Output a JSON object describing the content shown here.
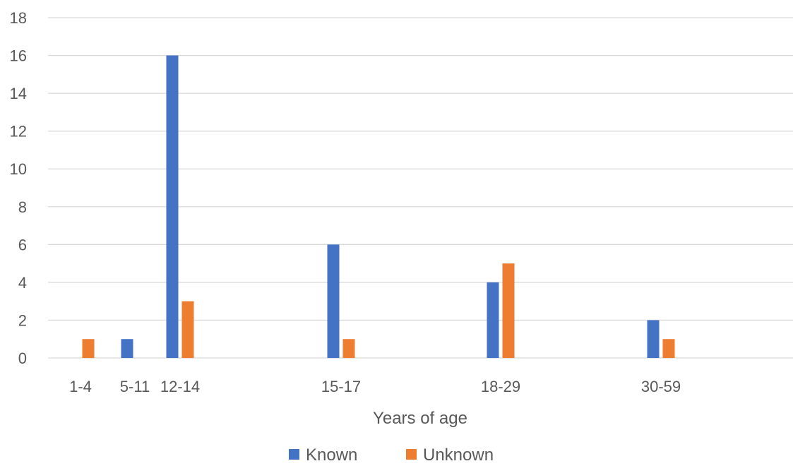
{
  "chart_data": {
    "type": "bar",
    "categories": [
      "1-4",
      "5-11",
      "12-14",
      "15-17",
      "18-29",
      "30-59"
    ],
    "series": [
      {
        "name": "Known",
        "values": [
          0,
          1,
          16,
          6,
          4,
          2
        ],
        "color": "#4472C4"
      },
      {
        "name": "Unknown",
        "values": [
          1,
          0,
          3,
          1,
          5,
          1
        ],
        "color": "#ED7D31"
      }
    ],
    "xlabel": "Years of age",
    "ylabel": "",
    "title": "",
    "ylim": [
      0,
      18
    ],
    "yticks": [
      0,
      2,
      4,
      6,
      8,
      10,
      12,
      14,
      16,
      18
    ],
    "grid": true,
    "legend_position": "bottom",
    "colors": {
      "gridline": "#d9d9d9",
      "text": "#595959"
    }
  }
}
